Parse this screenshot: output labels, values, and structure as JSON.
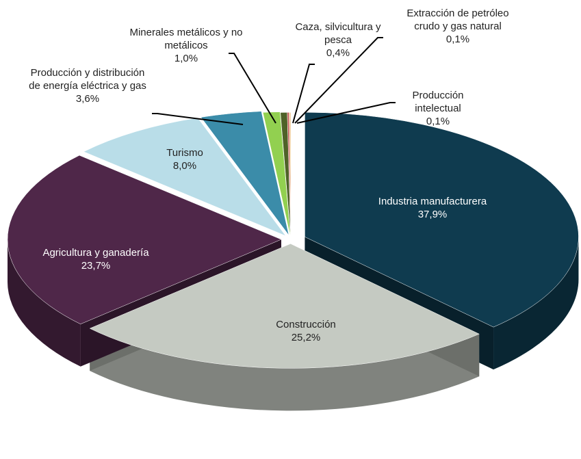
{
  "chart_data": {
    "type": "pie",
    "categories": [
      "Industria manufacturera",
      "Construcción",
      "Agricultura y ganadería",
      "Turismo",
      "Producción y distribución de energía eléctrica y gas",
      "Minerales metálicos y no metálicos",
      "Caza, silvicultura y pesca",
      "Extracción de petróleo crudo y gas natural",
      "Producción intelectual"
    ],
    "values": [
      37.9,
      25.2,
      23.7,
      8.0,
      3.6,
      1.0,
      0.4,
      0.1,
      0.1
    ],
    "value_labels": [
      "37,9%",
      "25,2%",
      "23,7%",
      "8,0%",
      "3,6%",
      "1,0%",
      "0,4%",
      "0,1%",
      "0,1%"
    ],
    "colors": [
      "#0f3b4f",
      "#c5cac2",
      "#4f2749",
      "#b9dde8",
      "#3b8ca9",
      "#92d050",
      "#4f6228",
      "#c0504d",
      "#f0c896"
    ]
  }
}
